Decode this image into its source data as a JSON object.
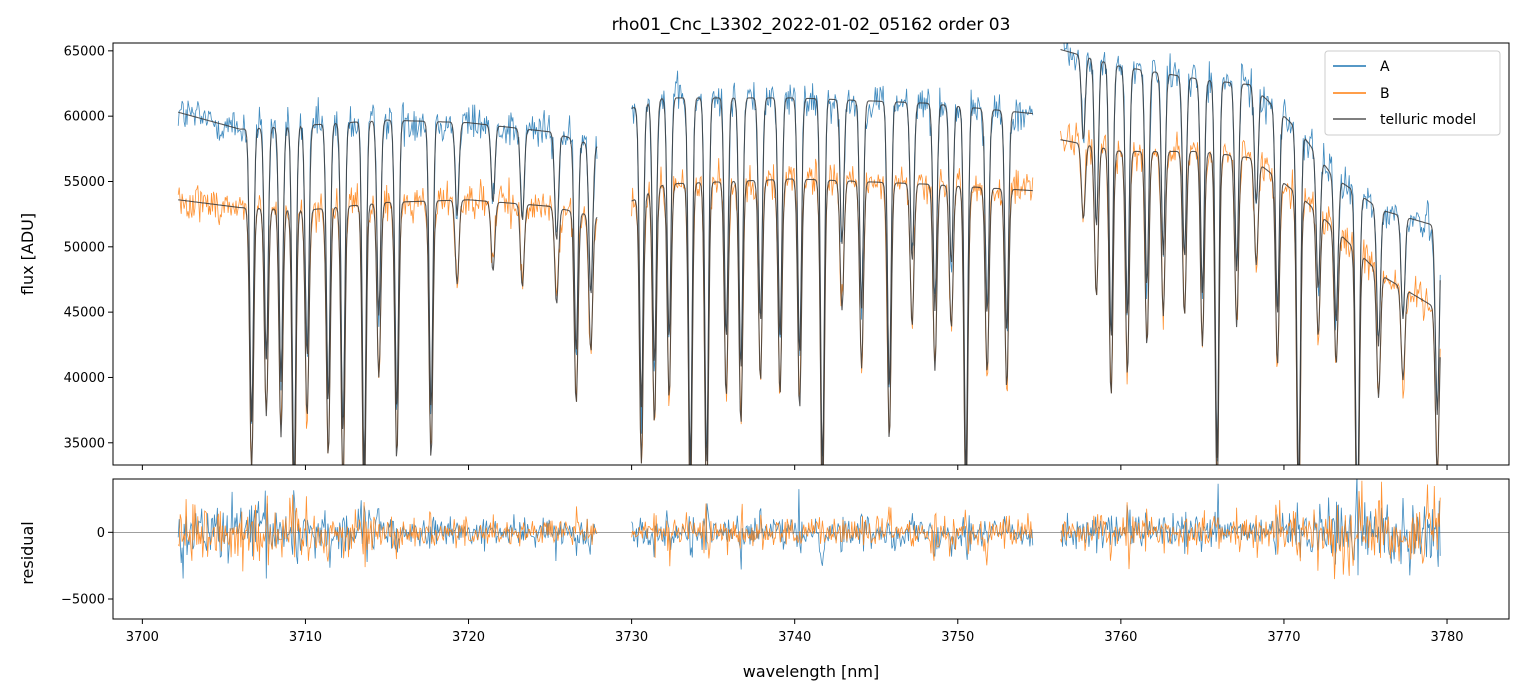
{
  "chart_data": {
    "type": "line",
    "title": "rho01_Cnc_L3302_2022-01-02_05162  order 03",
    "xlabel": "wavelength [nm]",
    "xlim": [
      3698.2,
      3783.8
    ],
    "x_ticks": [
      3700,
      3710,
      3720,
      3730,
      3740,
      3750,
      3760,
      3770,
      3780
    ],
    "x_tick_labels": [
      "3700",
      "3710",
      "3720",
      "3730",
      "3740",
      "3750",
      "3760",
      "3770",
      "3780"
    ],
    "segments": [
      [
        3702.2,
        3727.9
      ],
      [
        3730.0,
        3754.6
      ],
      [
        3756.3,
        3779.6
      ]
    ],
    "colors": {
      "A": "#1f77b4",
      "B": "#ff7f0e",
      "model": "#3a3a3a"
    },
    "legend": {
      "position": "top-right",
      "entries": [
        {
          "label": "A",
          "color": "#1f77b4"
        },
        {
          "label": "B",
          "color": "#ff7f0e"
        },
        {
          "label": "telluric model",
          "color": "#555555"
        }
      ]
    },
    "panels": [
      {
        "name": "flux",
        "ylabel": "flux [ADU]",
        "ylim": [
          33300,
          65600
        ],
        "y_ticks": [
          35000,
          40000,
          45000,
          50000,
          55000,
          60000,
          65000
        ],
        "y_tick_labels": [
          "35000",
          "40000",
          "45000",
          "50000",
          "55000",
          "60000",
          "65000"
        ],
        "series": [
          {
            "name": "A",
            "continuum": [
              [
                3702.2,
                60300
              ],
              [
                3706,
                59000
              ],
              [
                3710,
                59300
              ],
              [
                3715,
                59700
              ],
              [
                3720,
                59500
              ],
              [
                3725,
                58800
              ],
              [
                3727.9,
                57700
              ],
              [
                3730.0,
                60600
              ],
              [
                3732,
                61400
              ],
              [
                3740,
                61400
              ],
              [
                3748,
                61000
              ],
              [
                3754.6,
                60200
              ],
              [
                3756.3,
                65100
              ],
              [
                3760,
                63800
              ],
              [
                3765,
                62800
              ],
              [
                3768,
                62400
              ],
              [
                3771,
                58800
              ],
              [
                3773,
                55400
              ],
              [
                3776,
                52800
              ],
              [
                3779.6,
                51500
              ]
            ],
            "noise": 1100
          },
          {
            "name": "B",
            "continuum": [
              [
                3702.2,
                53600
              ],
              [
                3706,
                53000
              ],
              [
                3710,
                52800
              ],
              [
                3715,
                53400
              ],
              [
                3720,
                53600
              ],
              [
                3725,
                53100
              ],
              [
                3727.9,
                52300
              ],
              [
                3730.0,
                53500
              ],
              [
                3732,
                54800
              ],
              [
                3740,
                55200
              ],
              [
                3748,
                54800
              ],
              [
                3754.6,
                54300
              ],
              [
                3756.3,
                58200
              ],
              [
                3760,
                57300
              ],
              [
                3765,
                57300
              ],
              [
                3768,
                56800
              ],
              [
                3771,
                53900
              ],
              [
                3773,
                51500
              ],
              [
                3776,
                47800
              ],
              [
                3779.6,
                45100
              ]
            ],
            "noise": 1000
          },
          {
            "name": "telluric model (A)",
            "continuum": [
              [
                3702.2,
                60300
              ],
              [
                3706,
                59000
              ],
              [
                3710,
                59300
              ],
              [
                3715,
                59700
              ],
              [
                3720,
                59500
              ],
              [
                3725,
                58800
              ],
              [
                3727.9,
                57700
              ],
              [
                3730.0,
                60600
              ],
              [
                3732,
                61400
              ],
              [
                3740,
                61400
              ],
              [
                3748,
                61000
              ],
              [
                3754.6,
                60200
              ],
              [
                3756.3,
                65100
              ],
              [
                3760,
                63800
              ],
              [
                3765,
                62800
              ],
              [
                3768,
                62400
              ],
              [
                3771,
                58800
              ],
              [
                3773,
                55400
              ],
              [
                3776,
                52800
              ],
              [
                3779.6,
                51500
              ]
            ]
          },
          {
            "name": "telluric model (B)",
            "continuum": [
              [
                3702.2,
                53600
              ],
              [
                3706,
                53000
              ],
              [
                3710,
                52800
              ],
              [
                3715,
                53400
              ],
              [
                3720,
                53600
              ],
              [
                3725,
                53100
              ],
              [
                3727.9,
                52300
              ],
              [
                3730.0,
                53500
              ],
              [
                3732,
                54800
              ],
              [
                3740,
                55200
              ],
              [
                3748,
                54800
              ],
              [
                3754.6,
                54300
              ],
              [
                3756.3,
                58200
              ],
              [
                3760,
                57300
              ],
              [
                3765,
                57300
              ],
              [
                3768,
                56800
              ],
              [
                3771,
                53900
              ],
              [
                3773,
                51500
              ],
              [
                3776,
                47800
              ],
              [
                3779.6,
                45100
              ]
            ]
          }
        ],
        "absorption_lines": [
          {
            "x": 3706.7,
            "depth": 0.38
          },
          {
            "x": 3707.6,
            "depth": 0.3
          },
          {
            "x": 3708.5,
            "depth": 0.33
          },
          {
            "x": 3709.3,
            "depth": 0.46
          },
          {
            "x": 3710.1,
            "depth": 0.3
          },
          {
            "x": 3711.4,
            "depth": 0.36
          },
          {
            "x": 3712.3,
            "depth": 0.4
          },
          {
            "x": 3713.6,
            "depth": 0.45
          },
          {
            "x": 3714.5,
            "depth": 0.25
          },
          {
            "x": 3715.6,
            "depth": 0.37
          },
          {
            "x": 3717.7,
            "depth": 0.37
          },
          {
            "x": 3719.3,
            "depth": 0.12
          },
          {
            "x": 3721.5,
            "depth": 0.1
          },
          {
            "x": 3723.3,
            "depth": 0.12
          },
          {
            "x": 3725.4,
            "depth": 0.14
          },
          {
            "x": 3726.6,
            "depth": 0.28
          },
          {
            "x": 3727.5,
            "depth": 0.2
          },
          {
            "x": 3730.6,
            "depth": 0.38
          },
          {
            "x": 3731.4,
            "depth": 0.33
          },
          {
            "x": 3732.3,
            "depth": 0.3
          },
          {
            "x": 3733.6,
            "depth": 0.46
          },
          {
            "x": 3734.6,
            "depth": 0.46
          },
          {
            "x": 3735.8,
            "depth": 0.3
          },
          {
            "x": 3736.7,
            "depth": 0.34
          },
          {
            "x": 3737.9,
            "depth": 0.28
          },
          {
            "x": 3739.1,
            "depth": 0.3
          },
          {
            "x": 3740.3,
            "depth": 0.32
          },
          {
            "x": 3741.7,
            "depth": 0.46
          },
          {
            "x": 3742.9,
            "depth": 0.18
          },
          {
            "x": 3744.1,
            "depth": 0.26
          },
          {
            "x": 3745.8,
            "depth": 0.36
          },
          {
            "x": 3747.2,
            "depth": 0.2
          },
          {
            "x": 3748.6,
            "depth": 0.26
          },
          {
            "x": 3749.6,
            "depth": 0.2
          },
          {
            "x": 3750.5,
            "depth": 0.46
          },
          {
            "x": 3751.8,
            "depth": 0.26
          },
          {
            "x": 3753.0,
            "depth": 0.28
          },
          {
            "x": 3757.7,
            "depth": 0.1
          },
          {
            "x": 3758.5,
            "depth": 0.2
          },
          {
            "x": 3759.4,
            "depth": 0.33
          },
          {
            "x": 3760.4,
            "depth": 0.3
          },
          {
            "x": 3761.6,
            "depth": 0.26
          },
          {
            "x": 3762.6,
            "depth": 0.22
          },
          {
            "x": 3763.9,
            "depth": 0.22
          },
          {
            "x": 3765.0,
            "depth": 0.26
          },
          {
            "x": 3765.9,
            "depth": 0.46
          },
          {
            "x": 3767.1,
            "depth": 0.23
          },
          {
            "x": 3768.3,
            "depth": 0.14
          },
          {
            "x": 3769.6,
            "depth": 0.26
          },
          {
            "x": 3770.9,
            "depth": 0.46
          },
          {
            "x": 3772.1,
            "depth": 0.18
          },
          {
            "x": 3773.2,
            "depth": 0.2
          },
          {
            "x": 3774.5,
            "depth": 0.46
          },
          {
            "x": 3775.8,
            "depth": 0.2
          },
          {
            "x": 3777.3,
            "depth": 0.15
          },
          {
            "x": 3779.4,
            "depth": 0.28
          }
        ]
      },
      {
        "name": "residual",
        "ylabel": "residual",
        "ylim": [
          -6500,
          4000
        ],
        "y_ticks": [
          -5000,
          0
        ],
        "y_tick_labels": [
          "−5000",
          "0"
        ],
        "zero_line": 0,
        "noise_envelope": [
          [
            3702.2,
            3500
          ],
          [
            3708,
            3000
          ],
          [
            3712,
            2500
          ],
          [
            3716,
            1500
          ],
          [
            3727.9,
            1300
          ],
          [
            3730.0,
            1200
          ],
          [
            3745,
            1500
          ],
          [
            3754.6,
            1600
          ],
          [
            3756.3,
            1700
          ],
          [
            3768,
            1500
          ],
          [
            3771,
            2000
          ],
          [
            3774,
            4000
          ],
          [
            3779.6,
            4000
          ]
        ]
      }
    ]
  }
}
